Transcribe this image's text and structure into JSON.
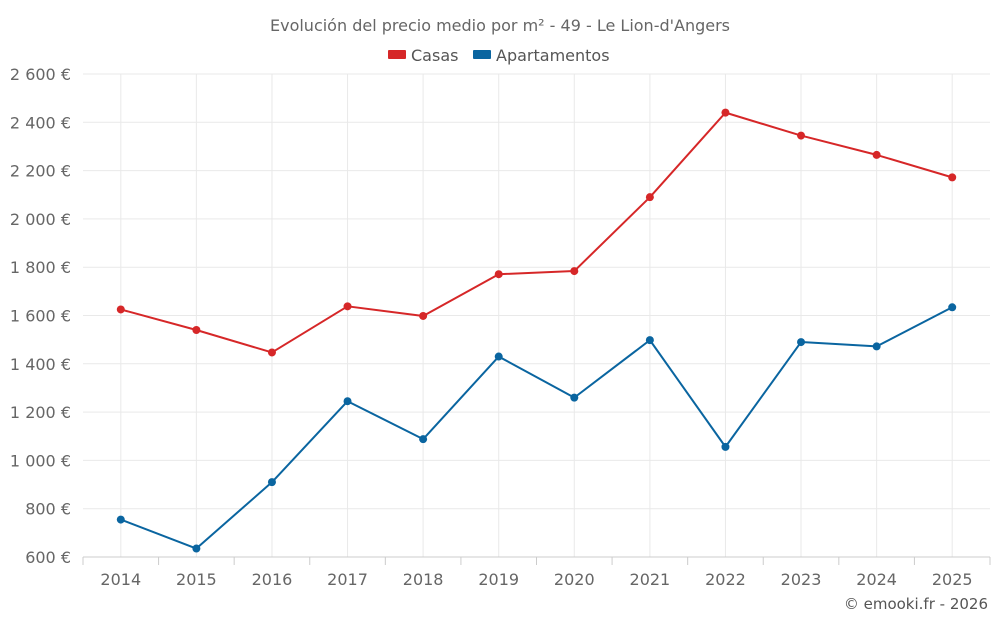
{
  "chart_data": {
    "type": "line",
    "title": "Evolución del precio medio por m² - 49 - Le Lion-d'Angers",
    "xlabel": "",
    "ylabel": "",
    "categories": [
      "2014",
      "2015",
      "2016",
      "2017",
      "2018",
      "2019",
      "2020",
      "2021",
      "2022",
      "2023",
      "2024",
      "2025"
    ],
    "ylim": [
      600,
      2600
    ],
    "yticks": [
      600,
      800,
      1000,
      1200,
      1400,
      1600,
      1800,
      2000,
      2200,
      2400,
      2600
    ],
    "ytick_labels": [
      "600 €",
      "800 €",
      "1 000 €",
      "1 200 €",
      "1 400 €",
      "1 600 €",
      "1 800 €",
      "2 000 €",
      "2 200 €",
      "2 400 €",
      "2 600 €"
    ],
    "grid": true,
    "legend_position": "top-center",
    "series": [
      {
        "name": "Casas",
        "color": "#d62728",
        "values": [
          1625,
          1540,
          1447,
          1638,
          1598,
          1771,
          1784,
          2090,
          2440,
          2345,
          2265,
          2172
        ]
      },
      {
        "name": "Apartamentos",
        "color": "#0a65a0",
        "values": [
          755,
          635,
          910,
          1245,
          1088,
          1430,
          1260,
          1498,
          1056,
          1490,
          1472,
          1634
        ]
      }
    ],
    "credit": "© emooki.fr - 2026"
  }
}
